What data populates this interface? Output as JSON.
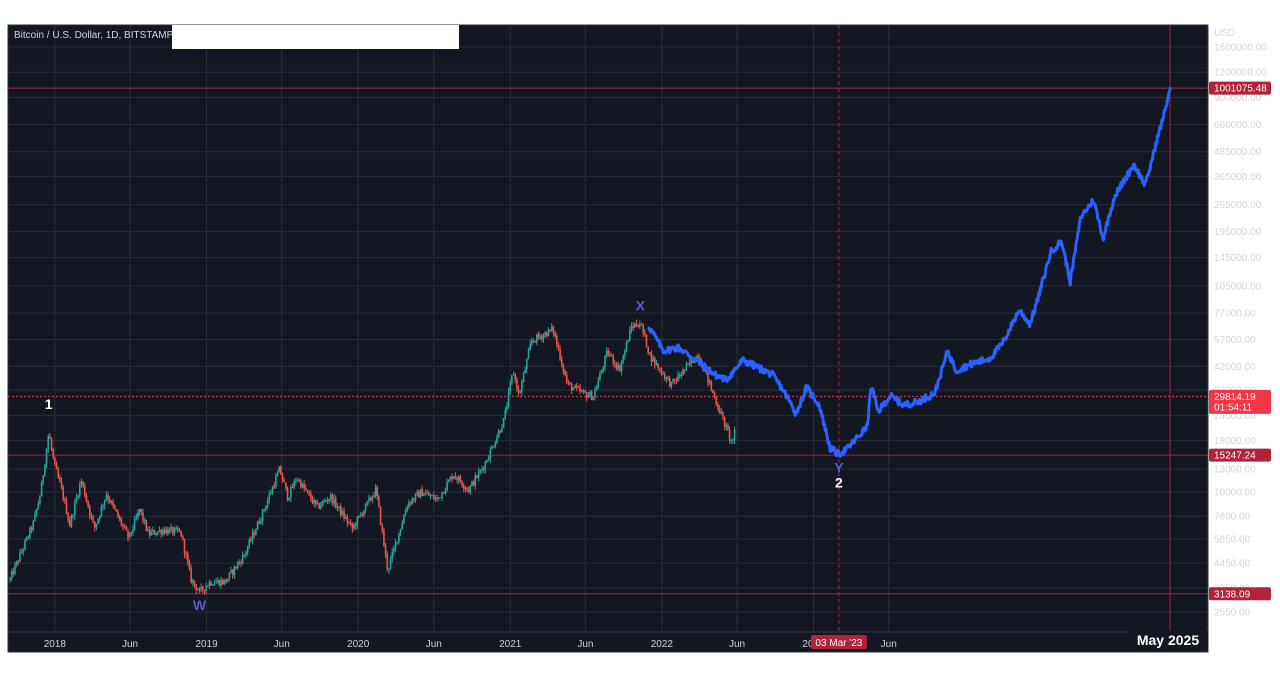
{
  "chart_data": {
    "type": "line",
    "title": "Bitcoin / U.S. Dollar, 1D, BITSTAMP",
    "y_axis": {
      "unit": "USD",
      "scale": "log",
      "ticks": [
        "1600000.00",
        "1200000.00",
        "900000.00",
        "660000.00",
        "485000.00",
        "365000.00",
        "265000.00",
        "195000.00",
        "145000.00",
        "105000.00",
        "77000.00",
        "57000.00",
        "42000.00",
        "32000.00",
        "24000.00",
        "18000.00",
        "13000.00",
        "10000.00",
        "7600.00",
        "5850.00",
        "4450.00",
        "3350.00",
        "2550.00"
      ]
    },
    "x_axis": {
      "ticks": [
        "2018",
        "Jun",
        "2019",
        "Jun",
        "2020",
        "Jun",
        "2021",
        "Jun",
        "2022",
        "Jun",
        "2023",
        "Jun"
      ],
      "highlight_date": "03 Mar '23",
      "projection_end_label": "May 2025"
    },
    "price_lines": [
      {
        "value": "1001075.48",
        "color": "#b2223a"
      },
      {
        "value": "29814.19",
        "sub": "01:54:11",
        "color": "#f23645"
      },
      {
        "value": "15247.24",
        "color": "#b2223a"
      },
      {
        "value": "3138.09",
        "color": "#b2223a"
      }
    ],
    "wave_labels": [
      {
        "text": "1",
        "date": "2017-12-17",
        "price": 19650,
        "color": "#ffffff"
      },
      {
        "text": "W",
        "date": "2018-12-15",
        "price": 3200,
        "color": "#5b5bd6"
      },
      {
        "text": "X",
        "date": "2021-11-10",
        "price": 69000,
        "color": "#5b5bd6"
      },
      {
        "text": "Y",
        "date": "2023-03-03",
        "price": 15400,
        "color": "#5b5bd6"
      },
      {
        "text": "2",
        "date": "2023-03-03",
        "price": 15400,
        "color": "#ffffff"
      }
    ],
    "series": [
      {
        "name": "",
        "style": "candles",
        "color_up": "#26a69a",
        "color_down": "#ef5350",
        "points": [
          [
            "2017-09-15",
            3700
          ],
          [
            "2017-10-15",
            5200
          ],
          [
            "2017-11-10",
            7000
          ],
          [
            "2017-11-28",
            10000
          ],
          [
            "2017-12-17",
            19650
          ],
          [
            "2017-12-31",
            13500
          ],
          [
            "2018-01-16",
            10500
          ],
          [
            "2018-02-06",
            6900
          ],
          [
            "2018-03-05",
            11500
          ],
          [
            "2018-04-06",
            6600
          ],
          [
            "2018-05-05",
            9800
          ],
          [
            "2018-06-28",
            5900
          ],
          [
            "2018-07-24",
            8200
          ],
          [
            "2018-08-14",
            6200
          ],
          [
            "2018-09-20",
            6500
          ],
          [
            "2018-10-31",
            6300
          ],
          [
            "2018-11-25",
            3700
          ],
          [
            "2018-12-15",
            3200
          ],
          [
            "2019-01-10",
            3600
          ],
          [
            "2019-02-15",
            3600
          ],
          [
            "2019-04-02",
            4900
          ],
          [
            "2019-05-15",
            7800
          ],
          [
            "2019-06-26",
            13000
          ],
          [
            "2019-07-16",
            9400
          ],
          [
            "2019-08-06",
            11800
          ],
          [
            "2019-09-24",
            8400
          ],
          [
            "2019-10-26",
            9500
          ],
          [
            "2019-12-18",
            6600
          ],
          [
            "2020-02-13",
            10300
          ],
          [
            "2020-03-12",
            4100
          ],
          [
            "2020-04-29",
            8800
          ],
          [
            "2020-06-01",
            10000
          ],
          [
            "2020-07-10",
            9200
          ],
          [
            "2020-08-17",
            12300
          ],
          [
            "2020-09-23",
            10300
          ],
          [
            "2020-11-01",
            13800
          ],
          [
            "2020-12-17",
            22800
          ],
          [
            "2021-01-08",
            40000
          ],
          [
            "2021-01-22",
            30000
          ],
          [
            "2021-02-21",
            56000
          ],
          [
            "2021-04-14",
            64000
          ],
          [
            "2021-05-19",
            34000
          ],
          [
            "2021-06-22",
            31000
          ],
          [
            "2021-07-20",
            29800
          ],
          [
            "2021-08-23",
            49500
          ],
          [
            "2021-09-21",
            40500
          ],
          [
            "2021-10-20",
            66000
          ],
          [
            "2021-11-10",
            69000
          ],
          [
            "2021-12-04",
            47000
          ],
          [
            "2022-01-24",
            34000
          ],
          [
            "2022-03-29",
            48000
          ],
          [
            "2022-05-12",
            28000
          ],
          [
            "2022-06-18",
            17600
          ],
          [
            "2022-06-28",
            20500
          ]
        ]
      },
      {
        "name": "",
        "style": "line",
        "color": "#2962ff",
        "points": [
          [
            "2021-12-01",
            66000
          ],
          [
            "2022-01-05",
            50000
          ],
          [
            "2022-02-10",
            52000
          ],
          [
            "2022-03-25",
            45000
          ],
          [
            "2022-05-10",
            38000
          ],
          [
            "2022-06-05",
            36000
          ],
          [
            "2022-07-15",
            45000
          ],
          [
            "2022-08-25",
            41000
          ],
          [
            "2022-09-25",
            38000
          ],
          [
            "2022-10-20",
            32000
          ],
          [
            "2022-11-20",
            24500
          ],
          [
            "2022-12-15",
            33000
          ],
          [
            "2023-01-15",
            27000
          ],
          [
            "2023-02-10",
            16500
          ],
          [
            "2023-03-03",
            15400
          ],
          [
            "2023-03-25",
            16500
          ],
          [
            "2023-04-15",
            18500
          ],
          [
            "2023-05-10",
            21000
          ],
          [
            "2023-05-20",
            34000
          ],
          [
            "2023-06-05",
            25000
          ],
          [
            "2023-07-05",
            30000
          ],
          [
            "2023-08-05",
            27000
          ],
          [
            "2023-09-10",
            28000
          ],
          [
            "2023-10-20",
            31000
          ],
          [
            "2023-11-20",
            50000
          ],
          [
            "2023-12-10",
            40000
          ],
          [
            "2024-01-15",
            43000
          ],
          [
            "2024-03-01",
            46000
          ],
          [
            "2024-04-01",
            55000
          ],
          [
            "2024-05-10",
            80000
          ],
          [
            "2024-06-05",
            68000
          ],
          [
            "2024-06-25",
            92000
          ],
          [
            "2024-07-25",
            155000
          ],
          [
            "2024-08-20",
            175000
          ],
          [
            "2024-09-10",
            110000
          ],
          [
            "2024-10-05",
            230000
          ],
          [
            "2024-11-05",
            280000
          ],
          [
            "2024-11-28",
            180000
          ],
          [
            "2024-12-25",
            290000
          ],
          [
            "2025-02-10",
            420000
          ],
          [
            "2025-03-10",
            330000
          ],
          [
            "2025-04-05",
            540000
          ],
          [
            "2025-04-25",
            760000
          ],
          [
            "2025-05-08",
            1001075
          ]
        ]
      }
    ]
  }
}
